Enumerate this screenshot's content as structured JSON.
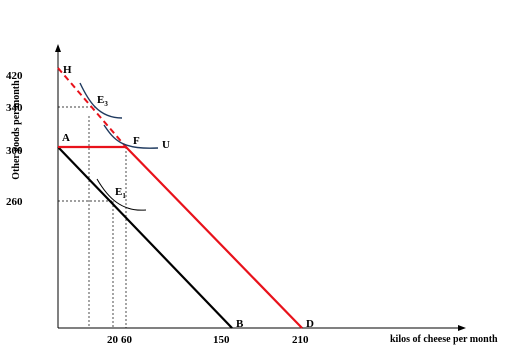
{
  "chart_data": {
    "type": "line",
    "xlabel": "kilos of cheese per month",
    "ylabel": "Other goods per month",
    "xlim": [
      0,
      300
    ],
    "ylim": [
      0,
      450
    ],
    "x_tick_labels": [
      "20",
      "60",
      "150",
      "210"
    ],
    "y_tick_labels": [
      "420",
      "340",
      "300",
      "260"
    ],
    "series": [
      {
        "points": [
          [
            0,
            300
          ],
          [
            150,
            0
          ]
        ],
        "color": "#000000",
        "style": "solid"
      },
      {
        "points": [
          [
            0,
            300
          ],
          [
            60,
            300
          ],
          [
            210,
            0
          ]
        ],
        "color": "#e8121b",
        "style": "solid"
      },
      {
        "points": [
          [
            0,
            420
          ],
          [
            60,
            300
          ]
        ],
        "color": "#e8121b",
        "style": "dashed"
      },
      {
        "points": [
          [
            20,
            400
          ],
          [
            25,
            370
          ],
          [
            45,
            345
          ],
          [
            65,
            342
          ]
        ],
        "color": "#1f3a5f",
        "style": "curve"
      },
      {
        "points": [
          [
            40,
            340
          ],
          [
            50,
            318
          ],
          [
            65,
            300
          ],
          [
            90,
            302
          ]
        ],
        "color": "#1f3a5f",
        "style": "curve"
      },
      {
        "points": [
          [
            35,
            290
          ],
          [
            45,
            267
          ],
          [
            65,
            250
          ],
          [
            75,
            250
          ]
        ],
        "color": "#000000",
        "style": "curve"
      }
    ],
    "points": [
      {
        "label": "H",
        "x": 0,
        "y": 420
      },
      {
        "label": "A",
        "x": 0,
        "y": 300
      },
      {
        "label": "E3",
        "x": 20,
        "y": 340
      },
      {
        "label": "F",
        "x": 60,
        "y": 300
      },
      {
        "label": "U",
        "x": 90,
        "y": 300
      },
      {
        "label": "E1",
        "x": 40,
        "y": 260
      },
      {
        "label": "B",
        "x": 150,
        "y": 0
      },
      {
        "label": "D",
        "x": 210,
        "y": 0
      }
    ],
    "guides": [
      {
        "x": 20,
        "y": 260
      },
      {
        "x": 60,
        "y": 300
      },
      {
        "x": 40,
        "y": 340
      },
      {
        "x": 60,
        "y": 0
      }
    ]
  },
  "labels": {
    "H": "H",
    "A": "A",
    "F": "F",
    "U": "U",
    "B": "B",
    "D": "D",
    "E3_main": "E",
    "E3_sub": "3",
    "E1_main": "E",
    "E1_sub": "1"
  }
}
